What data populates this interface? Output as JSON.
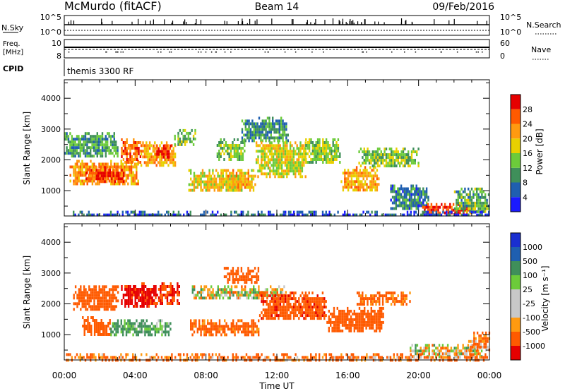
{
  "header": {
    "station": "McMurdo (fitACF)",
    "beam": "Beam 14",
    "date": "09/Feb/2016"
  },
  "summary": {
    "nsky_label": "N.Sky",
    "nsky_top": "10^5",
    "nsky_bottom": "10^0",
    "nsearch_label": "N.Search",
    "nsearch_top": "10^5",
    "nsearch_bottom": "10^0",
    "freq_label": "Freq.",
    "freq_unit": "[MHz]",
    "freq_top": "10",
    "freq_bottom": "8",
    "nave_label": "Nave",
    "nave_top": "60",
    "nave_bottom": "0",
    "cpid_label": "CPID",
    "cpid_value": "themis 3300 RF"
  },
  "colors": {
    "power_scale": [
      "#1a1aff",
      "#1f5fb0",
      "#3f8f5a",
      "#6ccb3a",
      "#e8d000",
      "#ff9a10",
      "#ff5a00",
      "#e60000"
    ],
    "velocity_scale": [
      "#e60000",
      "#ff5a00",
      "#ff9a10",
      "#c8c8c8",
      "#c8c8c8",
      "#6ccb3a",
      "#3f8f5a",
      "#1f5fb0",
      "#1a2fd0"
    ]
  },
  "chart_data": [
    {
      "type": "heatmap",
      "title": "",
      "xlabel": "Time UT",
      "ylabel": "Slant Range [km]",
      "x_tick_labels": [
        "00:00",
        "04:00",
        "08:00",
        "12:00",
        "16:00",
        "20:00",
        "00:00"
      ],
      "xlim_hours": [
        0,
        24
      ],
      "y_tick_labels": [
        "1000",
        "2000",
        "3000",
        "4000"
      ],
      "ylim": [
        180,
        4600
      ],
      "colorbar": {
        "label": "Power [dB]",
        "tick_labels": [
          "4",
          "8",
          "12",
          "16",
          "20",
          "24",
          "28"
        ],
        "range": [
          0,
          32
        ]
      },
      "patches": [
        {
          "t0": 0.0,
          "t1": 3.0,
          "r0": 2100,
          "r1": 2900,
          "v": 11
        },
        {
          "t0": 0.3,
          "t1": 4.2,
          "r0": 1200,
          "r1": 2000,
          "v": 23
        },
        {
          "t0": 1.2,
          "t1": 3.4,
          "r0": 1300,
          "r1": 1800,
          "v": 27
        },
        {
          "t0": 3.2,
          "t1": 4.3,
          "r0": 1900,
          "r1": 2700,
          "v": 25
        },
        {
          "t0": 4.3,
          "t1": 6.3,
          "r0": 1800,
          "r1": 2600,
          "v": 21
        },
        {
          "t0": 5.0,
          "t1": 6.0,
          "r0": 2100,
          "r1": 2500,
          "v": 29
        },
        {
          "t0": 6.2,
          "t1": 7.4,
          "r0": 2500,
          "r1": 3000,
          "v": 13
        },
        {
          "t0": 7.0,
          "t1": 10.0,
          "r0": 1000,
          "r1": 1700,
          "v": 18
        },
        {
          "t0": 8.6,
          "t1": 10.2,
          "r0": 2000,
          "r1": 2700,
          "v": 13
        },
        {
          "t0": 9.2,
          "t1": 10.8,
          "r0": 1000,
          "r1": 1700,
          "v": 20
        },
        {
          "t0": 10.0,
          "t1": 12.6,
          "r0": 2600,
          "r1": 3400,
          "v": 10
        },
        {
          "t0": 10.8,
          "t1": 13.6,
          "r0": 1500,
          "r1": 2600,
          "v": 17
        },
        {
          "t0": 13.6,
          "t1": 15.6,
          "r0": 1900,
          "r1": 2700,
          "v": 15
        },
        {
          "t0": 15.6,
          "t1": 17.8,
          "r0": 1000,
          "r1": 1800,
          "v": 21
        },
        {
          "t0": 16.6,
          "t1": 20.0,
          "r0": 1800,
          "r1": 2400,
          "v": 14
        },
        {
          "t0": 18.4,
          "t1": 20.6,
          "r0": 400,
          "r1": 1200,
          "v": 8
        },
        {
          "t0": 20.2,
          "t1": 23.0,
          "r0": 250,
          "r1": 600,
          "v": 28
        },
        {
          "t0": 22.0,
          "t1": 24.0,
          "r0": 300,
          "r1": 1100,
          "v": 12
        },
        {
          "t0": 0.0,
          "t1": 24.0,
          "r0": 180,
          "r1": 350,
          "v": 6
        }
      ]
    },
    {
      "type": "heatmap",
      "title": "",
      "xlabel": "Time UT",
      "ylabel": "Slant Range [km]",
      "x_tick_labels": [
        "00:00",
        "04:00",
        "08:00",
        "12:00",
        "16:00",
        "20:00",
        "00:00"
      ],
      "xlim_hours": [
        0,
        24
      ],
      "y_tick_labels": [
        "1000",
        "2000",
        "3000",
        "4000"
      ],
      "ylim": [
        180,
        4600
      ],
      "colorbar": {
        "label": "Velocity [m s⁻¹]",
        "tick_labels": [
          "1000",
          "500",
          "100",
          "25",
          "-25",
          "-100",
          "-500",
          "-1000"
        ]
      },
      "patches": [
        {
          "t0": 0.5,
          "t1": 3.0,
          "r0": 1800,
          "r1": 2600,
          "v": -300
        },
        {
          "t0": 3.2,
          "t1": 5.2,
          "r0": 1900,
          "r1": 2700,
          "v": -600
        },
        {
          "t0": 5.2,
          "t1": 6.5,
          "r0": 2000,
          "r1": 2700,
          "v": -500
        },
        {
          "t0": 1.0,
          "t1": 2.6,
          "r0": 1000,
          "r1": 1600,
          "v": -250
        },
        {
          "t0": 2.6,
          "t1": 6.0,
          "r0": 1000,
          "r1": 1500,
          "v": 150
        },
        {
          "t0": 7.0,
          "t1": 11.0,
          "r0": 1000,
          "r1": 1500,
          "v": -200
        },
        {
          "t0": 7.2,
          "t1": 12.5,
          "r0": 2200,
          "r1": 2600,
          "v": 0
        },
        {
          "t0": 9.0,
          "t1": 11.0,
          "r0": 2700,
          "r1": 3200,
          "v": -300
        },
        {
          "t0": 11.0,
          "t1": 14.8,
          "r0": 1500,
          "r1": 2400,
          "v": -400
        },
        {
          "t0": 14.8,
          "t1": 18.0,
          "r0": 1100,
          "r1": 1900,
          "v": -350
        },
        {
          "t0": 16.5,
          "t1": 19.5,
          "r0": 2000,
          "r1": 2400,
          "v": -200
        },
        {
          "t0": 19.5,
          "t1": 23.6,
          "r0": 300,
          "r1": 700,
          "v": 0
        },
        {
          "t0": 22.8,
          "t1": 24.0,
          "r0": 500,
          "r1": 1100,
          "v": -150
        },
        {
          "t0": 0.0,
          "t1": 24.0,
          "r0": 180,
          "r1": 400,
          "v": -150
        }
      ]
    }
  ]
}
